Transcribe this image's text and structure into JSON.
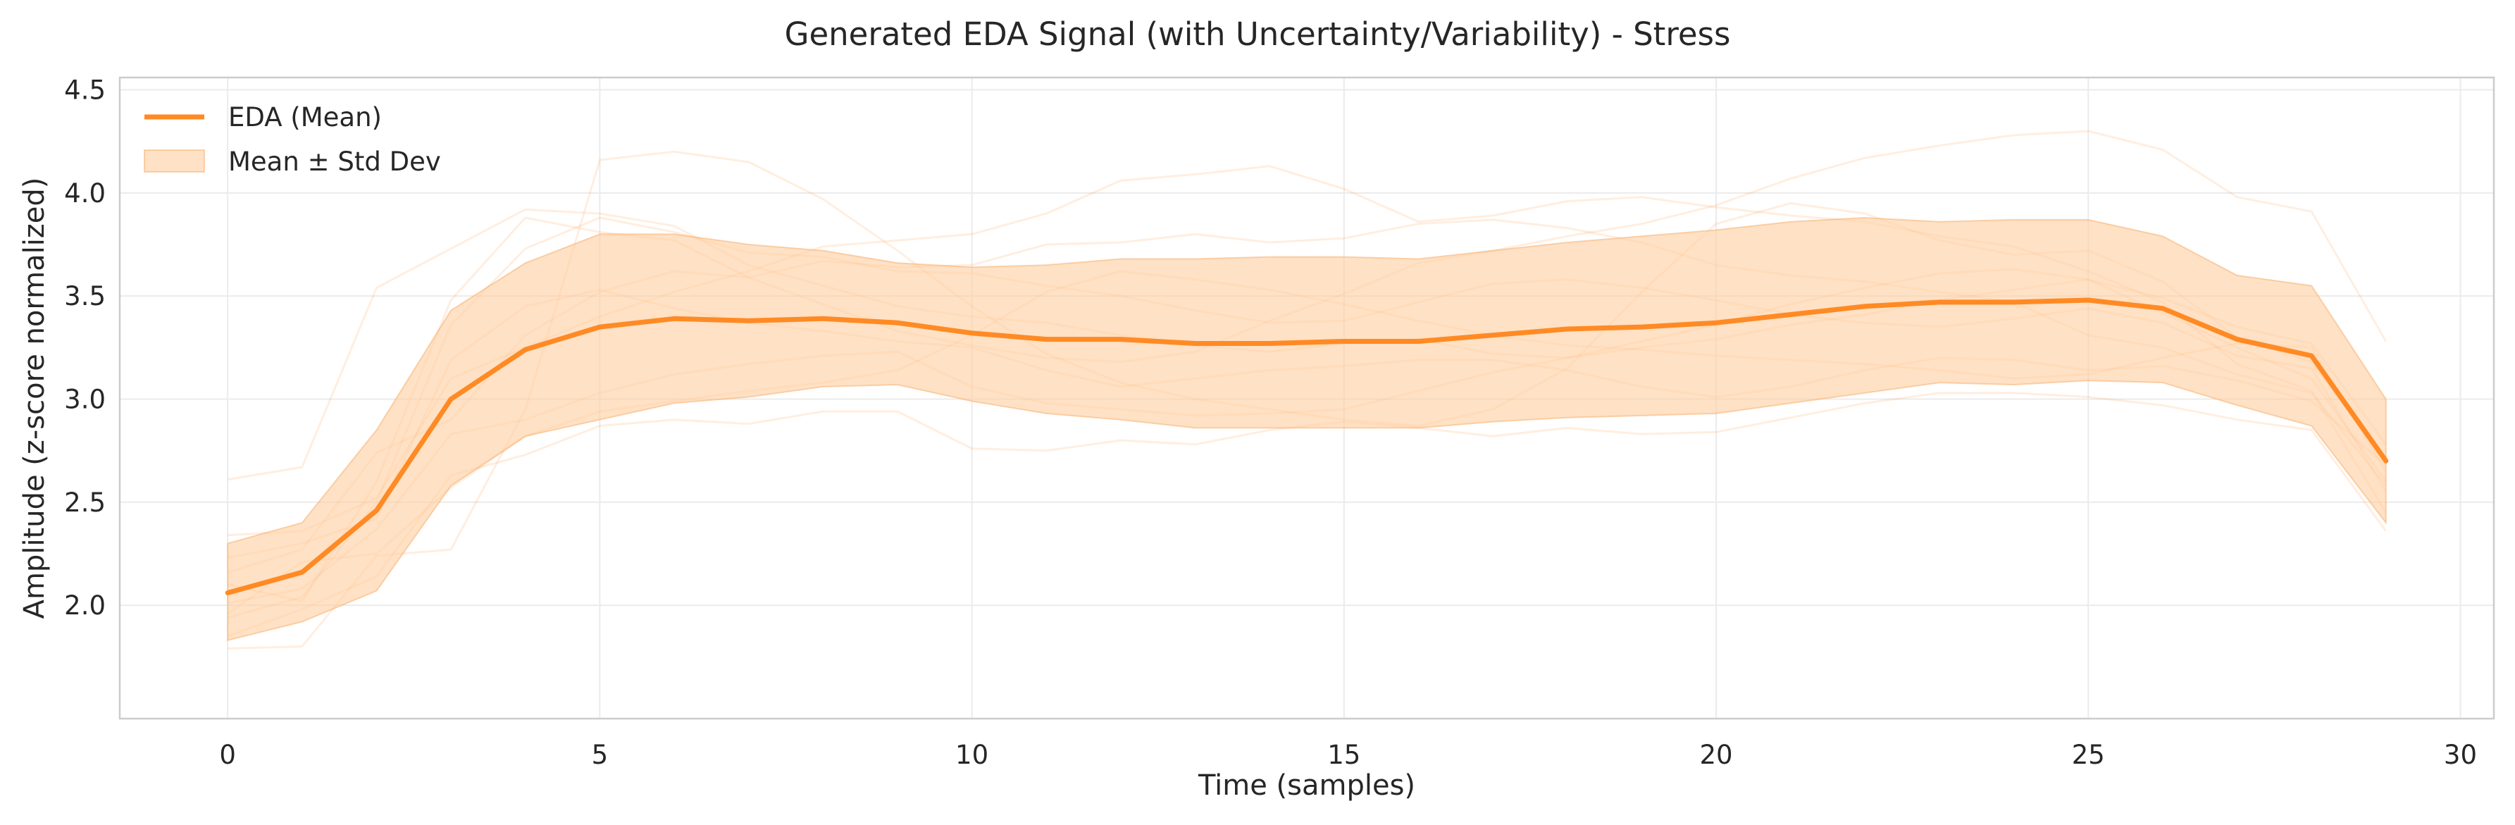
{
  "chart_data": {
    "type": "line",
    "title": "Generated EDA Signal (with Uncertainty/Variability) - Stress",
    "xlabel": "Time (samples)",
    "ylabel": "Amplitude (z-score normalized)",
    "xlim": [
      -1.45,
      30.45
    ],
    "ylim": [
      1.45,
      4.56
    ],
    "xticks": [
      0,
      5,
      10,
      15,
      20,
      25,
      30
    ],
    "yticks": [
      2.0,
      2.5,
      3.0,
      3.5,
      4.0,
      4.5
    ],
    "xtick_labels": [
      "0",
      "5",
      "10",
      "15",
      "20",
      "25",
      "30"
    ],
    "ytick_labels": [
      "2.0",
      "2.5",
      "3.0",
      "3.5",
      "4.0",
      "4.5"
    ],
    "grid": true,
    "legend_position": "top-left",
    "x": [
      0,
      1,
      2,
      3,
      4,
      5,
      6,
      7,
      8,
      9,
      10,
      11,
      12,
      13,
      14,
      15,
      16,
      17,
      18,
      19,
      20,
      21,
      22,
      23,
      24,
      25,
      26,
      27,
      28,
      29
    ],
    "series": [
      {
        "name": "EDA (Mean)",
        "color": "#ff8a24",
        "values": [
          2.06,
          2.16,
          2.46,
          3.0,
          3.24,
          3.35,
          3.39,
          3.38,
          3.39,
          3.37,
          3.32,
          3.29,
          3.29,
          3.27,
          3.27,
          3.28,
          3.28,
          3.31,
          3.34,
          3.35,
          3.37,
          3.41,
          3.45,
          3.47,
          3.47,
          3.48,
          3.44,
          3.29,
          3.21,
          2.7
        ]
      }
    ],
    "band": {
      "name": "Mean ± Std Dev",
      "color": "#ffcfa1",
      "edge_color": "#f7a458",
      "lower": [
        1.83,
        1.92,
        2.07,
        2.58,
        2.82,
        2.9,
        2.98,
        3.01,
        3.06,
        3.07,
        2.99,
        2.93,
        2.9,
        2.86,
        2.86,
        2.86,
        2.86,
        2.89,
        2.91,
        2.92,
        2.93,
        2.98,
        3.03,
        3.08,
        3.07,
        3.09,
        3.08,
        2.97,
        2.87,
        2.4
      ],
      "upper": [
        2.3,
        2.4,
        2.85,
        3.43,
        3.66,
        3.8,
        3.8,
        3.75,
        3.72,
        3.66,
        3.64,
        3.65,
        3.68,
        3.68,
        3.69,
        3.69,
        3.68,
        3.72,
        3.76,
        3.79,
        3.82,
        3.86,
        3.88,
        3.86,
        3.87,
        3.87,
        3.79,
        3.6,
        3.55,
        3.0
      ]
    },
    "samples": [
      [
        2.61,
        2.67,
        3.54,
        3.73,
        3.92,
        3.9,
        3.84,
        3.65,
        3.55,
        3.45,
        3.4,
        3.37,
        3.31,
        3.26,
        3.23,
        3.27,
        3.29,
        3.22,
        3.2,
        3.25,
        3.29,
        3.36,
        3.41,
        3.48,
        3.53,
        3.58,
        3.42,
        3.25,
        3.1,
        2.6
      ],
      [
        1.79,
        1.8,
        2.24,
        2.27,
        2.95,
        4.16,
        4.2,
        4.15,
        3.97,
        3.72,
        3.45,
        3.22,
        3.08,
        3.0,
        2.95,
        2.9,
        2.87,
        2.95,
        3.15,
        3.52,
        3.85,
        3.95,
        3.9,
        3.77,
        3.7,
        3.72,
        3.57,
        3.3,
        3.18,
        2.7
      ],
      [
        2.1,
        2.02,
        2.6,
        3.48,
        3.88,
        3.81,
        3.77,
        3.59,
        3.46,
        3.33,
        3.26,
        3.2,
        3.18,
        3.23,
        3.38,
        3.51,
        3.66,
        3.72,
        3.79,
        3.85,
        3.94,
        4.07,
        4.17,
        4.23,
        4.28,
        4.3,
        4.21,
        3.98,
        3.91,
        3.28
      ],
      [
        1.96,
        2.21,
        2.25,
        2.57,
        2.82,
        2.94,
        2.99,
        3.04,
        3.08,
        3.14,
        3.31,
        3.52,
        3.62,
        3.58,
        3.53,
        3.46,
        3.38,
        3.31,
        3.26,
        3.24,
        3.21,
        3.19,
        3.17,
        3.14,
        3.1,
        3.12,
        3.2,
        3.27,
        3.25,
        2.65
      ],
      [
        2.34,
        2.36,
        2.52,
        3.1,
        3.25,
        3.4,
        3.52,
        3.62,
        3.74,
        3.77,
        3.8,
        3.9,
        4.06,
        4.09,
        4.13,
        4.02,
        3.86,
        3.89,
        3.96,
        3.98,
        3.93,
        3.89,
        3.86,
        3.79,
        3.74,
        3.62,
        3.47,
        3.17,
        3.04,
        2.45
      ],
      [
        1.94,
        2.04,
        2.5,
        3.36,
        3.73,
        3.88,
        3.81,
        3.71,
        3.69,
        3.62,
        3.61,
        3.55,
        3.5,
        3.43,
        3.37,
        3.38,
        3.47,
        3.56,
        3.58,
        3.54,
        3.48,
        3.41,
        3.37,
        3.35,
        3.39,
        3.44,
        3.37,
        3.21,
        3.15,
        2.55
      ],
      [
        2.01,
        2.08,
        2.37,
        2.83,
        2.9,
        3.03,
        3.12,
        3.17,
        3.21,
        3.23,
        3.06,
        2.98,
        2.95,
        2.92,
        2.93,
        2.95,
        3.04,
        3.13,
        3.2,
        3.28,
        3.36,
        3.46,
        3.54,
        3.61,
        3.63,
        3.58,
        3.49,
        3.35,
        3.27,
        2.78
      ],
      [
        2.23,
        2.3,
        2.42,
        3.19,
        3.45,
        3.53,
        3.44,
        3.37,
        3.33,
        3.28,
        3.25,
        3.14,
        3.06,
        3.1,
        3.14,
        3.16,
        3.19,
        3.19,
        3.14,
        3.06,
        3.01,
        3.06,
        3.14,
        3.2,
        3.19,
        3.14,
        3.16,
        3.09,
        2.99,
        2.68
      ],
      [
        1.85,
        1.98,
        2.14,
        2.63,
        2.73,
        2.87,
        2.9,
        2.88,
        2.94,
        2.94,
        2.76,
        2.75,
        2.8,
        2.78,
        2.85,
        2.89,
        2.86,
        2.82,
        2.86,
        2.83,
        2.84,
        2.91,
        2.98,
        3.03,
        3.03,
        3.01,
        2.97,
        2.9,
        2.85,
        2.36
      ],
      [
        2.16,
        2.27,
        2.74,
        2.9,
        3.31,
        3.52,
        3.62,
        3.59,
        3.67,
        3.64,
        3.65,
        3.75,
        3.76,
        3.8,
        3.76,
        3.78,
        3.85,
        3.87,
        3.83,
        3.76,
        3.65,
        3.6,
        3.57,
        3.52,
        3.47,
        3.31,
        3.25,
        3.12,
        3.03,
        2.58
      ]
    ]
  }
}
